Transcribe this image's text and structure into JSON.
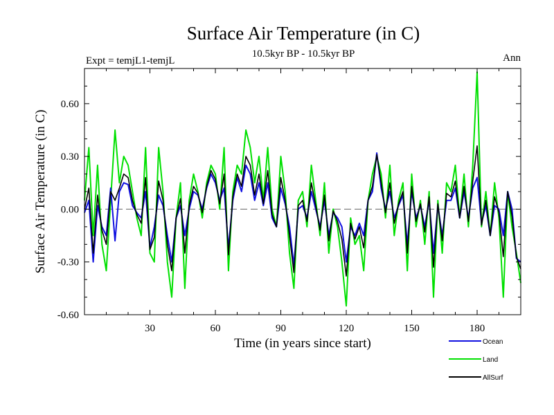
{
  "chart_data": {
    "type": "line",
    "title": "Surface Air Temperature (in C)",
    "subtitle": "10.5kyr BP - 10.5kyr BP",
    "left_label": "Expt = temjL1-temjL",
    "right_label": "Ann",
    "xlabel": "Time (in years since start)",
    "ylabel": "Surface Air Temperature (in C)",
    "xlim": [
      0,
      200
    ],
    "ylim": [
      -0.6,
      0.8
    ],
    "xticks": [
      30,
      60,
      90,
      120,
      150,
      180
    ],
    "yticks": [
      0.6,
      0.3,
      0.0,
      -0.3,
      -0.6
    ],
    "ytick_labels": [
      "0.60",
      "0.30",
      "0.00",
      "-0.30",
      "-0.60"
    ],
    "reference_line": 0.0,
    "legend_position": "bottom-right",
    "series": [
      {
        "name": "Land",
        "color": "#00e000",
        "x": [
          0,
          2,
          4,
          6,
          8,
          10,
          12,
          14,
          16,
          18,
          20,
          22,
          24,
          26,
          28,
          30,
          32,
          34,
          36,
          38,
          40,
          42,
          44,
          46,
          48,
          50,
          52,
          54,
          56,
          58,
          60,
          62,
          64,
          66,
          68,
          70,
          72,
          74,
          76,
          78,
          80,
          82,
          84,
          86,
          88,
          90,
          92,
          94,
          96,
          98,
          100,
          102,
          104,
          106,
          108,
          110,
          112,
          114,
          116,
          118,
          120,
          122,
          124,
          126,
          128,
          130,
          132,
          134,
          136,
          138,
          140,
          142,
          144,
          146,
          148,
          150,
          152,
          154,
          156,
          158,
          160,
          162,
          164,
          166,
          168,
          170,
          172,
          174,
          176,
          178,
          180,
          182,
          184,
          186,
          188,
          190,
          192,
          194,
          196,
          198,
          200
        ],
        "values": [
          0.05,
          0.35,
          -0.15,
          0.25,
          -0.2,
          -0.35,
          0.05,
          0.45,
          0.15,
          0.3,
          0.25,
          0.1,
          -0.05,
          -0.15,
          0.35,
          -0.25,
          -0.3,
          0.35,
          0.1,
          -0.3,
          -0.5,
          -0.05,
          0.15,
          -0.45,
          0.05,
          0.2,
          0.1,
          -0.05,
          0.15,
          0.25,
          0.2,
          0.0,
          0.35,
          -0.35,
          0.1,
          0.25,
          0.2,
          0.45,
          0.35,
          0.15,
          0.3,
          0.05,
          0.35,
          0.0,
          -0.1,
          0.3,
          0.1,
          -0.25,
          -0.45,
          0.05,
          0.1,
          -0.1,
          0.25,
          0.05,
          -0.15,
          0.15,
          -0.25,
          0.0,
          -0.1,
          -0.3,
          -0.55,
          -0.05,
          -0.2,
          -0.15,
          -0.35,
          0.05,
          0.2,
          0.3,
          0.2,
          -0.05,
          0.25,
          -0.15,
          0.05,
          0.15,
          -0.35,
          0.2,
          -0.1,
          0.05,
          -0.2,
          0.1,
          -0.5,
          0.05,
          -0.25,
          0.15,
          0.1,
          0.25,
          -0.05,
          0.2,
          -0.1,
          0.25,
          0.78,
          -0.1,
          0.1,
          -0.15,
          0.15,
          -0.05,
          -0.5,
          0.1,
          -0.1,
          -0.25,
          -0.42
        ]
      },
      {
        "name": "Ocean",
        "color": "#1010e0",
        "x": [
          0,
          2,
          4,
          6,
          8,
          10,
          12,
          14,
          16,
          18,
          20,
          22,
          24,
          26,
          28,
          30,
          32,
          34,
          36,
          38,
          40,
          42,
          44,
          46,
          48,
          50,
          52,
          54,
          56,
          58,
          60,
          62,
          64,
          66,
          68,
          70,
          72,
          74,
          76,
          78,
          80,
          82,
          84,
          86,
          88,
          90,
          92,
          94,
          96,
          98,
          100,
          102,
          104,
          106,
          108,
          110,
          112,
          114,
          116,
          118,
          120,
          122,
          124,
          126,
          128,
          130,
          132,
          134,
          136,
          138,
          140,
          142,
          144,
          146,
          148,
          150,
          152,
          154,
          156,
          158,
          160,
          162,
          164,
          166,
          168,
          170,
          172,
          174,
          176,
          178,
          180,
          182,
          184,
          186,
          188,
          190,
          192,
          194,
          196,
          198,
          200
        ],
        "values": [
          -0.02,
          0.05,
          -0.3,
          0.02,
          -0.1,
          -0.15,
          0.12,
          -0.18,
          0.1,
          0.15,
          0.14,
          0.02,
          -0.02,
          -0.05,
          0.1,
          -0.22,
          -0.1,
          0.08,
          0.02,
          -0.15,
          -0.3,
          -0.05,
          0.02,
          -0.15,
          0.0,
          0.1,
          0.08,
          0.0,
          0.12,
          0.2,
          0.15,
          0.05,
          0.12,
          -0.22,
          0.05,
          0.18,
          0.1,
          0.25,
          0.2,
          0.05,
          0.15,
          0.02,
          0.15,
          -0.05,
          -0.1,
          0.12,
          0.03,
          -0.1,
          -0.32,
          0.0,
          0.02,
          -0.05,
          0.1,
          0.0,
          -0.1,
          0.05,
          -0.15,
          -0.02,
          -0.05,
          -0.1,
          -0.3,
          -0.1,
          -0.15,
          -0.08,
          -0.15,
          0.05,
          0.1,
          0.32,
          0.12,
          0.0,
          0.1,
          -0.05,
          0.02,
          0.08,
          -0.2,
          0.1,
          -0.05,
          0.02,
          -0.1,
          0.05,
          -0.25,
          0.02,
          -0.15,
          0.05,
          0.05,
          0.12,
          -0.05,
          0.1,
          -0.05,
          0.12,
          0.18,
          -0.08,
          0.02,
          -0.15,
          0.02,
          0.0,
          -0.15,
          0.1,
          0.0,
          -0.28,
          -0.3
        ]
      },
      {
        "name": "AllSurf",
        "color": "#000000",
        "x": [
          0,
          2,
          4,
          6,
          8,
          10,
          12,
          14,
          16,
          18,
          20,
          22,
          24,
          26,
          28,
          30,
          32,
          34,
          36,
          38,
          40,
          42,
          44,
          46,
          48,
          50,
          52,
          54,
          56,
          58,
          60,
          62,
          64,
          66,
          68,
          70,
          72,
          74,
          76,
          78,
          80,
          82,
          84,
          86,
          88,
          90,
          92,
          94,
          96,
          98,
          100,
          102,
          104,
          106,
          108,
          110,
          112,
          114,
          116,
          118,
          120,
          122,
          124,
          126,
          128,
          130,
          132,
          134,
          136,
          138,
          140,
          142,
          144,
          146,
          148,
          150,
          152,
          154,
          156,
          158,
          160,
          162,
          164,
          166,
          168,
          170,
          172,
          174,
          176,
          178,
          180,
          182,
          184,
          186,
          188,
          190,
          192,
          194,
          196,
          198,
          200
        ],
        "values": [
          0.0,
          0.12,
          -0.25,
          0.08,
          -0.12,
          -0.2,
          0.1,
          0.05,
          0.12,
          0.2,
          0.18,
          0.05,
          -0.03,
          -0.08,
          0.18,
          -0.23,
          -0.16,
          0.16,
          0.05,
          -0.2,
          -0.35,
          -0.05,
          0.06,
          -0.25,
          0.02,
          0.13,
          0.09,
          -0.02,
          0.13,
          0.22,
          0.17,
          0.03,
          0.2,
          -0.26,
          0.07,
          0.2,
          0.13,
          0.3,
          0.25,
          0.08,
          0.2,
          0.03,
          0.22,
          -0.03,
          -0.1,
          0.18,
          0.05,
          -0.15,
          -0.36,
          0.02,
          0.05,
          -0.07,
          0.15,
          0.02,
          -0.12,
          0.08,
          -0.18,
          -0.01,
          -0.07,
          -0.17,
          -0.38,
          -0.08,
          -0.17,
          -0.1,
          -0.22,
          0.05,
          0.13,
          0.31,
          0.15,
          -0.02,
          0.15,
          -0.08,
          0.03,
          0.1,
          -0.25,
          0.13,
          -0.07,
          0.03,
          -0.13,
          0.07,
          -0.33,
          0.03,
          -0.18,
          0.09,
          0.07,
          0.16,
          -0.05,
          0.13,
          -0.07,
          0.16,
          0.36,
          -0.09,
          0.05,
          -0.15,
          0.07,
          -0.02,
          -0.27,
          0.1,
          -0.04,
          -0.27,
          -0.34
        ]
      }
    ]
  }
}
